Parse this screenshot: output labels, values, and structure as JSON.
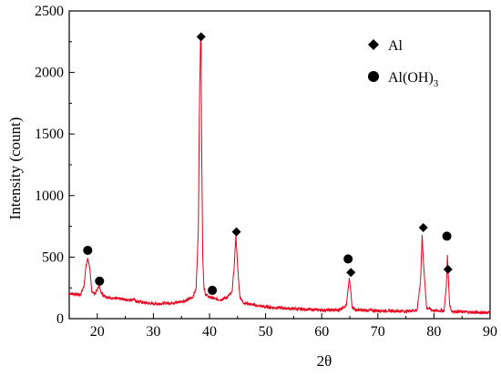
{
  "chart_data": {
    "type": "line",
    "title": "",
    "xlabel": "2θ",
    "ylabel": "Intensity (count)",
    "xlim": [
      15,
      90
    ],
    "ylim": [
      0,
      2500
    ],
    "x_ticks": [
      20,
      30,
      40,
      50,
      60,
      70,
      80,
      90
    ],
    "y_ticks": [
      0,
      500,
      1000,
      1500,
      2000,
      2500
    ],
    "line_color": "#e8001c",
    "grid": false,
    "legend_position": "top-right",
    "series": [
      {
        "x": [
          15,
          16,
          17,
          17.6,
          18.0,
          18.3,
          18.6,
          19.0,
          19.5,
          20.0,
          20.3,
          20.6,
          21,
          22,
          24,
          26,
          26.5,
          27,
          30,
          32,
          34,
          35,
          36,
          37,
          37.6,
          38.0,
          38.2,
          38.4,
          38.5,
          38.6,
          38.8,
          39.0,
          39.3,
          40,
          41,
          42,
          43,
          44.0,
          44.4,
          44.7,
          45.0,
          45.4,
          46,
          48,
          50,
          55,
          60,
          63,
          64.4,
          64.9,
          65.1,
          65.4,
          66,
          70,
          75,
          77.0,
          77.6,
          77.9,
          78.2,
          78.7,
          80,
          81.8,
          82.2,
          82.4,
          82.6,
          82.8,
          83.2,
          85,
          88,
          90
        ],
        "y": [
          205,
          200,
          195,
          260,
          430,
          490,
          430,
          230,
          200,
          235,
          270,
          225,
          195,
          170,
          160,
          150,
          165,
          140,
          120,
          125,
          130,
          140,
          150,
          175,
          240,
          700,
          1700,
          2290,
          2240,
          1400,
          500,
          250,
          195,
          175,
          160,
          155,
          170,
          210,
          420,
          680,
          430,
          180,
          130,
          110,
          95,
          80,
          70,
          70,
          110,
          320,
          260,
          100,
          70,
          65,
          60,
          70,
          300,
          680,
          400,
          90,
          65,
          65,
          260,
          510,
          300,
          110,
          60,
          55,
          50,
          50
        ]
      }
    ],
    "markers": [
      {
        "symbol": "circle",
        "x": 18.3,
        "y": 555
      },
      {
        "symbol": "circle",
        "x": 20.4,
        "y": 305
      },
      {
        "symbol": "circle",
        "x": 40.5,
        "y": 230
      },
      {
        "symbol": "circle",
        "x": 64.7,
        "y": 485
      },
      {
        "symbol": "circle",
        "x": 82.3,
        "y": 670
      },
      {
        "symbol": "diamond",
        "x": 38.5,
        "y": 2290
      },
      {
        "symbol": "diamond",
        "x": 44.8,
        "y": 705
      },
      {
        "symbol": "diamond",
        "x": 65.2,
        "y": 375
      },
      {
        "symbol": "diamond",
        "x": 78.1,
        "y": 740
      },
      {
        "symbol": "diamond",
        "x": 82.5,
        "y": 400
      }
    ],
    "legend": [
      {
        "symbol": "diamond",
        "label": "Al"
      },
      {
        "symbol": "circle",
        "label": "Al(OH)",
        "subscript": "3"
      }
    ]
  }
}
